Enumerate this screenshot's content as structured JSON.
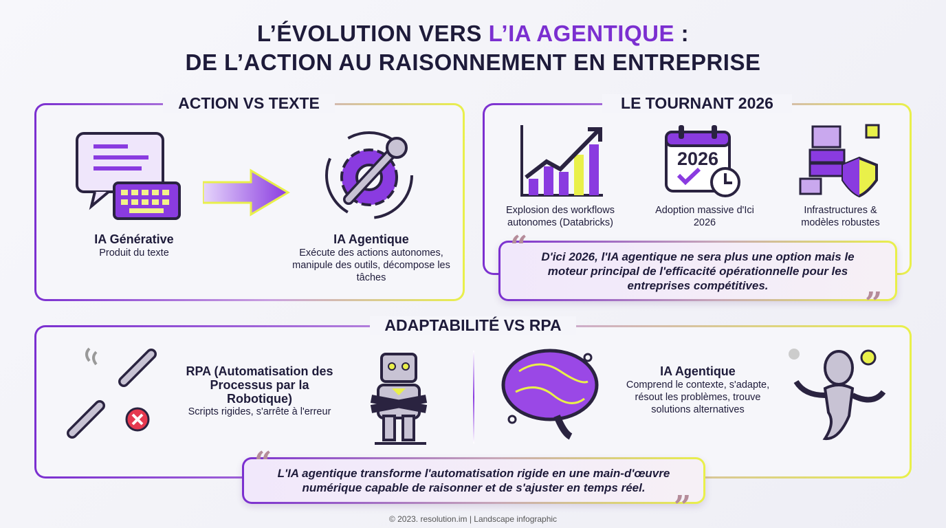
{
  "title": {
    "line1_a": "L’ÉVOLUTION VERS ",
    "line1_accent": "L’IA AGENTIQUE",
    "line1_b": " :",
    "line2": "DE L’ACTION AU RAISONNEMENT EN ENTREPRISE"
  },
  "colors": {
    "accent": "#7b2fd0",
    "highlight": "#e9f04a",
    "text": "#1e1b3a"
  },
  "action": {
    "title": "ACTION VS TEXTE",
    "left": {
      "heading": "IA Générative",
      "text": "Produit du texte",
      "icon": "chat-keyboard-icon"
    },
    "right": {
      "heading": "IA Agentique",
      "text": "Exécute des actions autonomes, manipule des outils, décompose les tâches",
      "icon": "gear-wrench-icon"
    }
  },
  "tournant": {
    "title": "LE TOURNANT 2026",
    "items": [
      {
        "label": "Explosion des workflows autonomes (Databricks)",
        "icon": "growth-chart-icon"
      },
      {
        "label": "Adoption massive d'Ici 2026",
        "icon": "calendar-icon",
        "calendar_year": "2026"
      },
      {
        "label": "Infrastructures & modèles robustes",
        "icon": "server-shield-icon"
      }
    ],
    "quote": "D'ici 2026, l'IA agentique ne sera plus une option mais le moteur principal de l'efficacité opérationnelle pour les entreprises compétitives."
  },
  "adapt": {
    "title": "ADAPTABILITÉ VS RPA",
    "left": {
      "heading": "RPA (Automatisation des Processus par la Robotique)",
      "text": "Scripts rigides, s'arrête à l'erreur",
      "icons": [
        "broken-chain-icon",
        "robot-icon"
      ]
    },
    "right": {
      "heading": "IA Agentique",
      "text": "Comprend le contexte, s'adapte, résout les problèmes, trouve solutions alternatives",
      "icons": [
        "brain-icon",
        "humanoid-robot-icon"
      ]
    },
    "quote": "L'IA agentique transforme l'automatisation rigide en une main-d'œuvre numérique capable de raisonner et de s'ajuster en temps réel."
  },
  "footer": "© 2023. resolution.im | Landscape infographic"
}
